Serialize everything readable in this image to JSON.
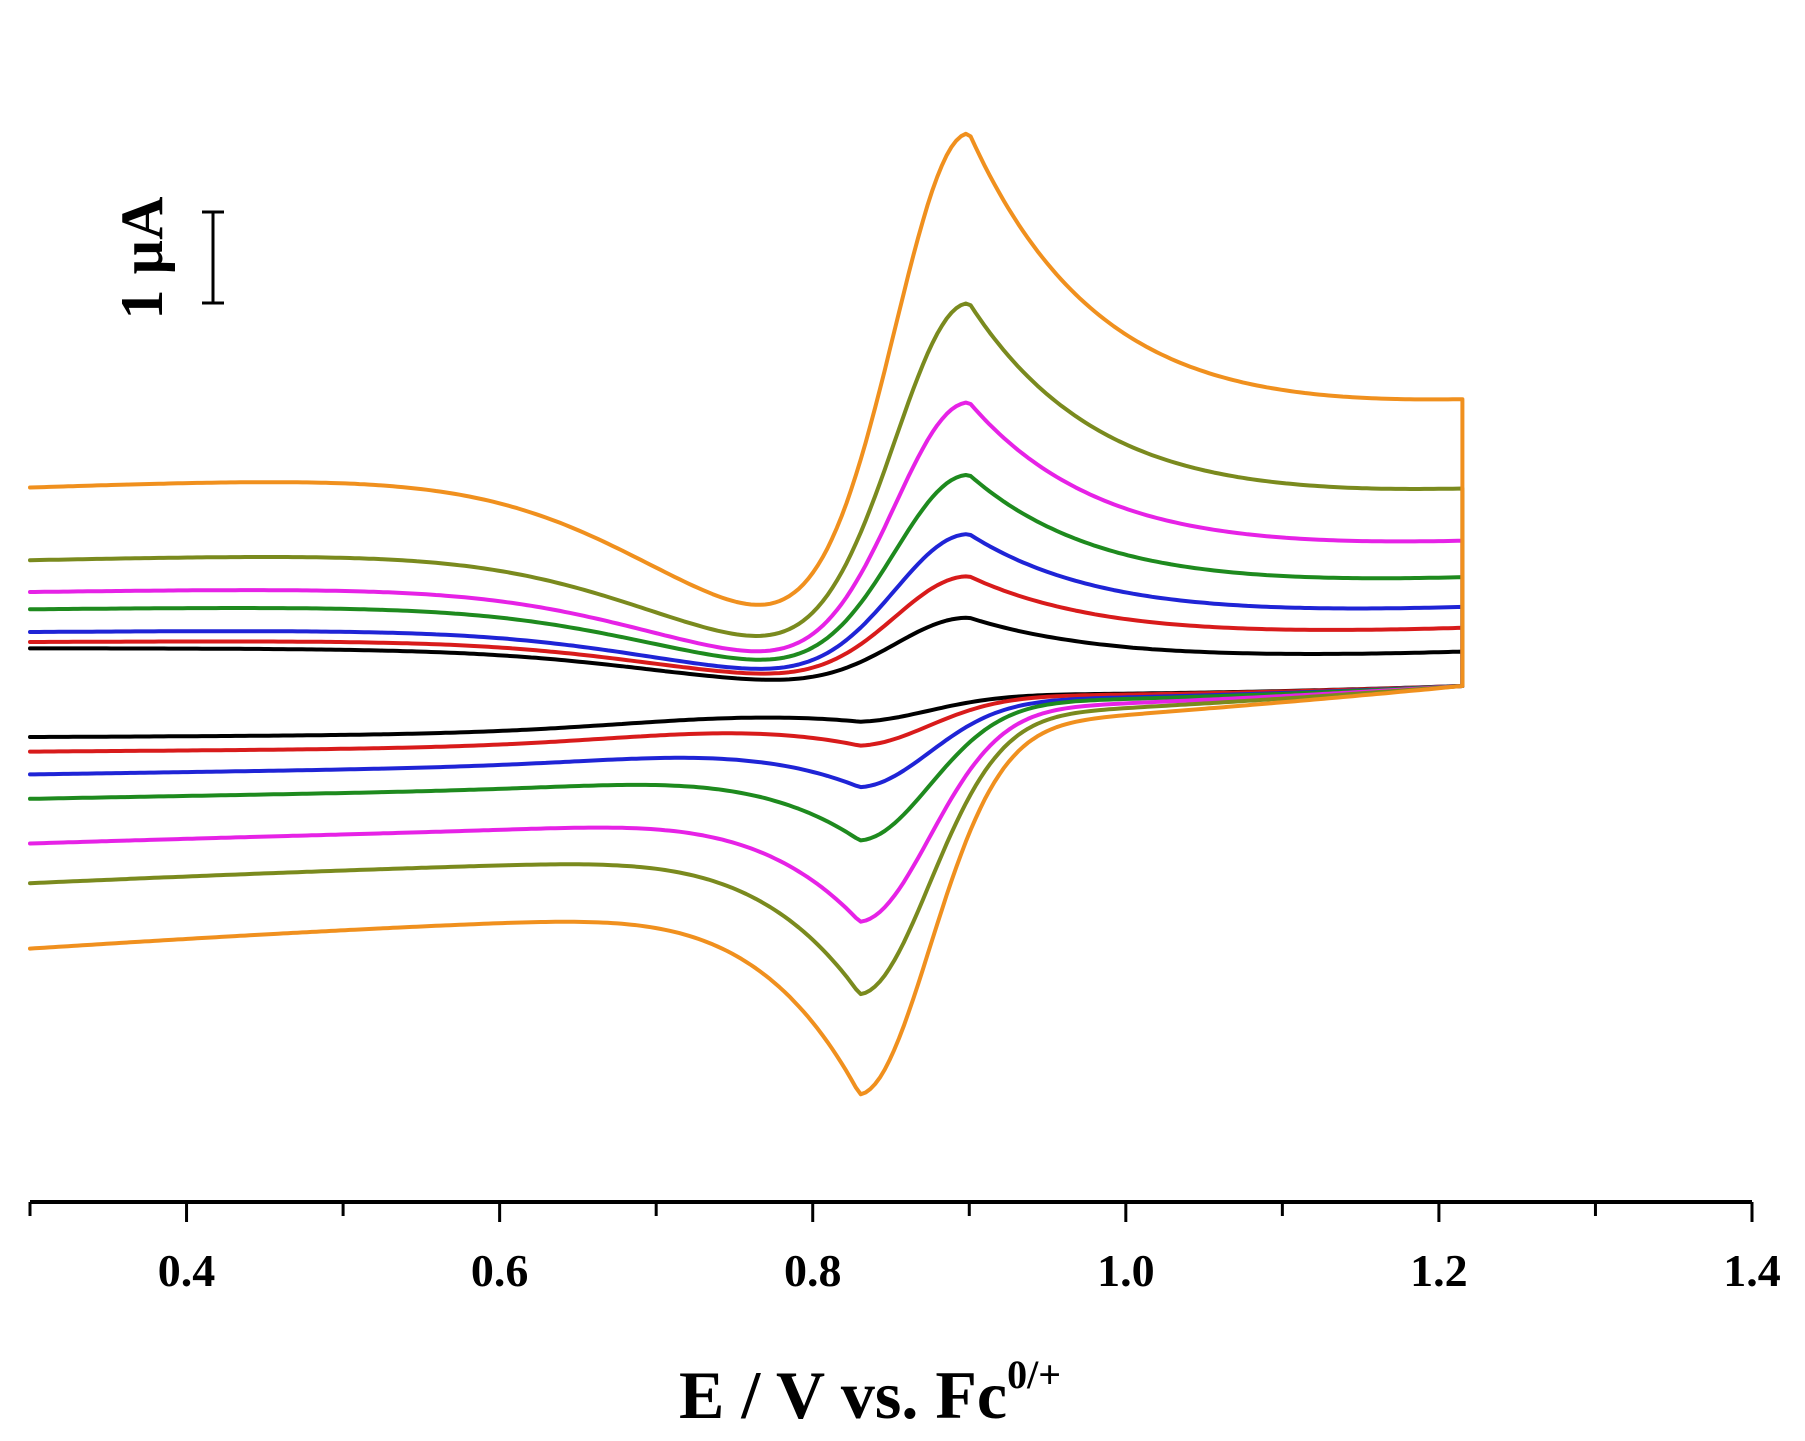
{
  "chart_data": {
    "type": "line",
    "title": "",
    "xlabel_main": "E / V vs. Fc",
    "xlabel_sup": "0/+",
    "ylabel": "",
    "xlim": [
      0.3,
      1.4
    ],
    "x_ticks": [
      0.4,
      0.6,
      0.8,
      1.0,
      1.2,
      1.4
    ],
    "x_tick_labels": [
      "0.4",
      "0.6",
      "0.8",
      "1.0",
      "1.2",
      "1.4"
    ],
    "y_unit": "µA",
    "ylim": [
      -4.6,
      6.3
    ],
    "grid": false,
    "legend": "none",
    "scale_bar": {
      "label": "1 µA",
      "value": 1
    },
    "series": [
      {
        "color": "#000000",
        "ipa": 0.8,
        "ipc": -0.26,
        "e_upper": 0.48,
        "e_lower": 0.36,
        "c_upper": 0.0,
        "c_lower": -0.07
      },
      {
        "color": "#d81b1b",
        "ipa": 1.2,
        "ipc": -0.5,
        "e_upper": 0.55,
        "e_lower": 0.42,
        "c_upper": 0.08,
        "c_lower": -0.11
      },
      {
        "color": "#1f24d6",
        "ipa": 1.64,
        "ipc": -0.9,
        "e_upper": 0.66,
        "e_lower": 0.44,
        "c_upper": 0.11,
        "c_lower": -0.24
      },
      {
        "color": "#1e8a1e",
        "ipa": 2.25,
        "ipc": -1.45,
        "e_upper": 0.91,
        "e_lower": 0.5,
        "c_upper": 0.16,
        "c_lower": -0.31
      },
      {
        "color": "#e622e6",
        "ipa": 3.0,
        "ipc": -2.25,
        "e_upper": 1.1,
        "e_lower": 0.59,
        "c_upper": 0.22,
        "c_lower": -0.51
      },
      {
        "color": "#7a8a1e",
        "ipa": 4.0,
        "ipc": -2.95,
        "e_upper": 1.45,
        "e_lower": 0.63,
        "c_upper": 0.34,
        "c_lower": -0.73
      },
      {
        "color": "#f0901e",
        "ipa": 5.7,
        "ipc": -3.9,
        "e_upper": 2.25,
        "e_lower": 0.79,
        "c_upper": 0.55,
        "c_lower": -1.05
      }
    ],
    "peak_potentials": {
      "anodic": 0.9,
      "cathodic": 0.83
    },
    "potential_window": [
      0.3,
      1.215
    ]
  }
}
